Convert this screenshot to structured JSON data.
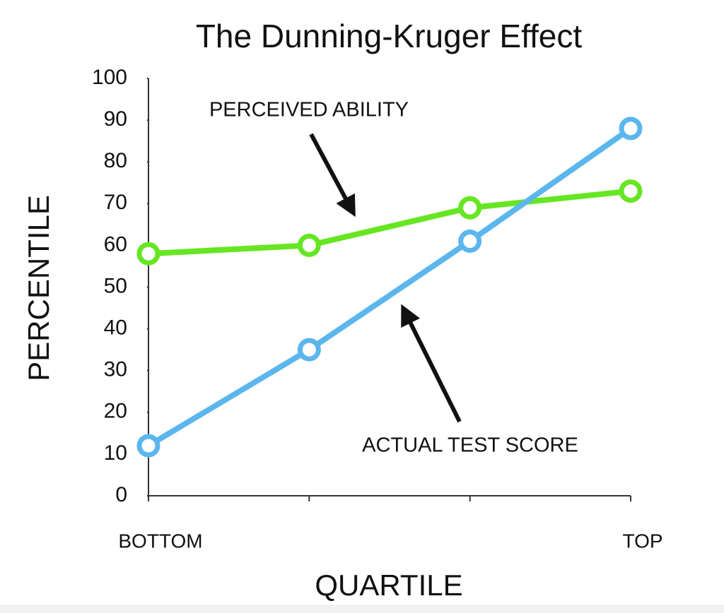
{
  "chart_data": {
    "type": "line",
    "title": "The Dunning-Kruger Effect",
    "x_label": "QUARTILE",
    "y_label": "PERCENTILE",
    "categories": [
      "BOTTOM",
      null,
      null,
      "TOP"
    ],
    "series": [
      {
        "name": "PERCEIVED ABILITY",
        "color": "#66e622",
        "values": [
          58,
          60,
          69,
          73
        ]
      },
      {
        "name": "ACTUAL TEST SCORE",
        "color": "#5cb6ee",
        "values": [
          12,
          35,
          61,
          88
        ]
      }
    ],
    "ylim": [
      0,
      100
    ],
    "yticks": [
      0,
      10,
      20,
      30,
      40,
      50,
      60,
      70,
      80,
      90,
      100
    ],
    "grid": false
  }
}
